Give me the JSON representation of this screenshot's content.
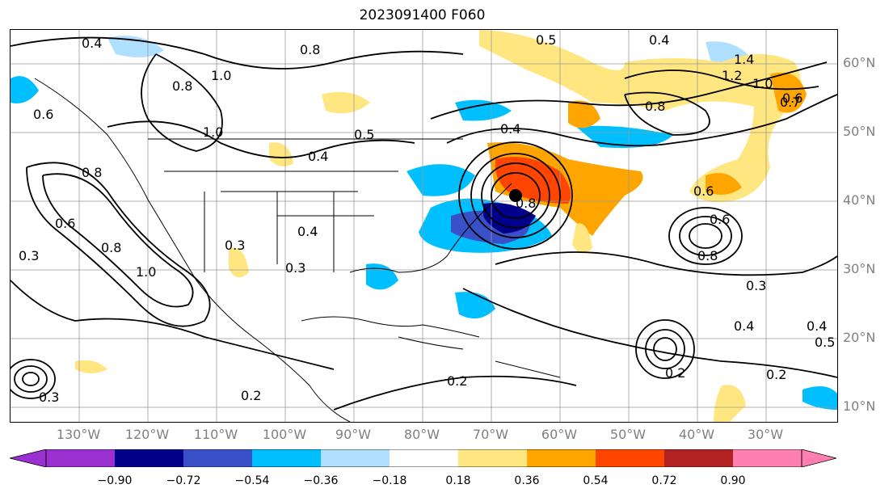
{
  "figure": {
    "title": "2023091400 F060"
  },
  "axes": {
    "lat_labels": [
      "60°N",
      "50°N",
      "40°N",
      "30°N",
      "20°N",
      "10°N"
    ],
    "lon_labels": [
      "130°W",
      "120°W",
      "110°W",
      "100°W",
      "90°W",
      "80°W",
      "70°W",
      "60°W",
      "50°W",
      "40°W",
      "30°W"
    ]
  },
  "contour_labels": [
    "0.4",
    "0.8",
    "1.0",
    "0.6",
    "0.8",
    "1.0",
    "0.8",
    "0.5",
    "0.4",
    "0.6",
    "0.3",
    "0.8",
    "1.0",
    "0.3",
    "0.4",
    "0.3",
    "0.4",
    "0.5",
    "0.4",
    "0.6",
    "0.8",
    "1.2",
    "1.4",
    "1.0",
    "0.7",
    "0.8",
    "0.6",
    "0.6",
    "0.8",
    "0.3",
    "0.4",
    "0.2",
    "0.2",
    "0.2",
    "0.3",
    "0.4",
    "0.5",
    "0.2"
  ],
  "colorbar": {
    "ticks": [
      "−0.90",
      "−0.72",
      "−0.54",
      "−0.36",
      "−0.18",
      "0.18",
      "0.36",
      "0.54",
      "0.72",
      "0.90"
    ],
    "colors": [
      "#9b30d0",
      "#00008b",
      "#3a50c8",
      "#00bfff",
      "#b0e0ff",
      "#ffffff",
      "#ffe680",
      "#ffa500",
      "#ff4500",
      "#b22222",
      "#ff80b0"
    ]
  },
  "marker": {
    "name": "storm-center",
    "color": "#000000"
  }
}
